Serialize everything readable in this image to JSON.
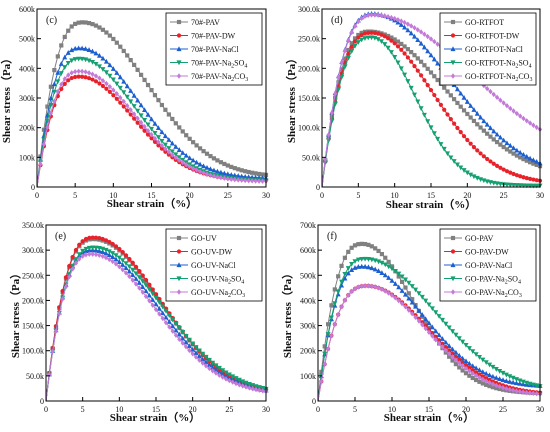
{
  "chart_data": [
    {
      "type": "line",
      "panel_label": "(c)",
      "xlabel": "Shear strain（%）",
      "ylabel": "Shear stress（Pa）",
      "xlim": [
        0,
        30
      ],
      "ylim": [
        0,
        600000
      ],
      "x_ticks": [
        0,
        5,
        10,
        15,
        20,
        25,
        30
      ],
      "y_ticks": [
        0,
        100000,
        200000,
        300000,
        400000,
        500000,
        600000
      ],
      "y_tick_labels": [
        "0",
        "100k",
        "200k",
        "300k",
        "400k",
        "500k",
        "600k"
      ],
      "legend_position": "top-right",
      "series": [
        {
          "name": "70#-PAV",
          "color": "#808080",
          "marker": "square",
          "peak_x": 6.0,
          "peak_y": 555000,
          "width": 2.4,
          "decay": 8.4,
          "end": 32000
        },
        {
          "name": "70#-PAV-DW",
          "color": "#e8222a",
          "marker": "circle",
          "peak_x": 5.6,
          "peak_y": 372000,
          "width": 2.1,
          "decay": 7.0,
          "end": 22000
        },
        {
          "name": "70#-PAV-NaCl",
          "color": "#1c5fcf",
          "marker": "triangle",
          "peak_x": 5.6,
          "peak_y": 468000,
          "width": 2.1,
          "decay": 7.5,
          "end": 28000
        },
        {
          "name": "70#-PAV-Na",
          "sub": "2",
          "suffix": "SO",
          "sub2": "4",
          "color": "#14a070",
          "marker": "triangle-down",
          "peak_x": 5.6,
          "peak_y": 432000,
          "width": 2.1,
          "decay": 7.2,
          "end": 20000
        },
        {
          "name": "70#-PAV-Na",
          "sub": "2",
          "suffix": "CO",
          "sub2": "3",
          "color": "#c47ad8",
          "marker": "diamond",
          "peak_x": 5.6,
          "peak_y": 390000,
          "width": 2.0,
          "decay": 7.2,
          "end": 18000
        }
      ]
    },
    {
      "type": "line",
      "panel_label": "(d)",
      "xlabel": "Shear strain（%）",
      "ylabel": "Shear stress（Pa）",
      "xlim": [
        0,
        30
      ],
      "ylim": [
        0,
        300000
      ],
      "x_ticks": [
        0,
        5,
        10,
        15,
        20,
        25,
        30
      ],
      "y_ticks": [
        0,
        50000,
        100000,
        150000,
        200000,
        250000,
        300000
      ],
      "y_tick_labels": [
        "0",
        "50.0k",
        "100.0k",
        "150.0k",
        "200.0k",
        "250.0k",
        "300.0k"
      ],
      "legend_position": "top-right",
      "series": [
        {
          "name": "GO-RTFOT",
          "color": "#808080",
          "marker": "square",
          "peak_x": 6.5,
          "peak_y": 262000,
          "width": 2.5,
          "decay": 10.5,
          "end": 15000
        },
        {
          "name": "GO-RTFOT-DW",
          "color": "#e8222a",
          "marker": "circle",
          "peak_x": 6.8,
          "peak_y": 260000,
          "width": 2.5,
          "decay": 8.4,
          "end": 5000
        },
        {
          "name": "GO-RTFOT-NaCl",
          "color": "#1c5fcf",
          "marker": "triangle",
          "peak_x": 7.0,
          "peak_y": 292000,
          "width": 2.6,
          "decay": 10.5,
          "end": 15000
        },
        {
          "name": "GO-RTFOT-Na",
          "sub": "2",
          "suffix": "SO",
          "sub2": "4",
          "color": "#14a070",
          "marker": "triangle-down",
          "peak_x": 6.8,
          "peak_y": 252000,
          "width": 2.7,
          "decay": 6.0,
          "end": 2000
        },
        {
          "name": "GO-RTFOT-Na",
          "sub": "2",
          "suffix": "CO",
          "sub2": "3",
          "color": "#c47ad8",
          "marker": "diamond",
          "peak_x": 7.0,
          "peak_y": 290000,
          "width": 2.7,
          "decay": 13.5,
          "end": 38000
        }
      ]
    },
    {
      "type": "line",
      "panel_label": "(e)",
      "xlabel": "Shear strain（%）",
      "ylabel": "Shear stress（Pa）",
      "xlim": [
        0,
        30
      ],
      "ylim": [
        0,
        350000
      ],
      "x_ticks": [
        0,
        5,
        10,
        15,
        20,
        25,
        30
      ],
      "y_ticks": [
        0,
        50000,
        100000,
        150000,
        200000,
        250000,
        300000,
        350000
      ],
      "y_tick_labels": [
        "0",
        "50.0k",
        "100.0k",
        "150.0k",
        "200.0k",
        "250.0k",
        "300.0k",
        "350.0k"
      ],
      "legend_position": "top-right",
      "series": [
        {
          "name": "GO-UV",
          "color": "#808080",
          "marker": "square",
          "peak_x": 6.5,
          "peak_y": 322000,
          "width": 2.6,
          "decay": 9.0,
          "end": 12000
        },
        {
          "name": "GO-UV-DW",
          "color": "#e8222a",
          "marker": "circle",
          "peak_x": 6.5,
          "peak_y": 325000,
          "width": 2.6,
          "decay": 9.0,
          "end": 12000
        },
        {
          "name": "GO-UV-NaCl",
          "color": "#1c5fcf",
          "marker": "triangle",
          "peak_x": 6.3,
          "peak_y": 300000,
          "width": 2.5,
          "decay": 9.0,
          "end": 12000
        },
        {
          "name": "GO-UV-Na",
          "sub": "2",
          "suffix": "SO",
          "sub2": "4",
          "color": "#14a070",
          "marker": "triangle-down",
          "peak_x": 6.5,
          "peak_y": 305000,
          "width": 2.5,
          "decay": 9.3,
          "end": 12000
        },
        {
          "name": "GO-UV-Na",
          "sub": "2",
          "suffix": "CO",
          "sub2": "3",
          "color": "#c47ad8",
          "marker": "diamond",
          "peak_x": 6.2,
          "peak_y": 292000,
          "width": 2.5,
          "decay": 8.8,
          "end": 12000
        }
      ]
    },
    {
      "type": "line",
      "panel_label": "(f)",
      "xlabel": "Shear strain（%）",
      "ylabel": "Shear stress（Pa）",
      "xlim": [
        0,
        30
      ],
      "ylim": [
        0,
        700000
      ],
      "x_ticks": [
        0,
        5,
        10,
        15,
        20,
        25,
        30
      ],
      "y_ticks": [
        0,
        100000,
        200000,
        300000,
        400000,
        500000,
        600000,
        700000
      ],
      "y_tick_labels": [
        "0",
        "100k",
        "200k",
        "300k",
        "400k",
        "500k",
        "600k",
        "700k"
      ],
      "legend_position": "top-right",
      "series": [
        {
          "name": "GO-PAV",
          "color": "#808080",
          "marker": "square",
          "peak_x": 6.0,
          "peak_y": 625000,
          "width": 2.3,
          "decay": 7.0,
          "end": 30000
        },
        {
          "name": "GO-PAV-DW",
          "color": "#e8222a",
          "marker": "circle",
          "peak_x": 6.6,
          "peak_y": 458000,
          "width": 2.6,
          "decay": 8.3,
          "end": 25000
        },
        {
          "name": "GO-PAV-NaCl",
          "color": "#1c5fcf",
          "marker": "triangle",
          "peak_x": 6.0,
          "peak_y": 535000,
          "width": 2.3,
          "decay": 8.0,
          "end": 55000
        },
        {
          "name": "GO-PAV-Na",
          "sub": "2",
          "suffix": "SO",
          "sub2": "4",
          "color": "#14a070",
          "marker": "triangle-down",
          "peak_x": 6.3,
          "peak_y": 565000,
          "width": 2.4,
          "decay": 9.5,
          "end": 35000
        },
        {
          "name": "GO-PAV-Na",
          "sub": "2",
          "suffix": "CO",
          "sub2": "3",
          "color": "#c47ad8",
          "marker": "diamond",
          "peak_x": 6.6,
          "peak_y": 458000,
          "width": 2.6,
          "decay": 8.0,
          "end": 22000
        }
      ]
    }
  ]
}
